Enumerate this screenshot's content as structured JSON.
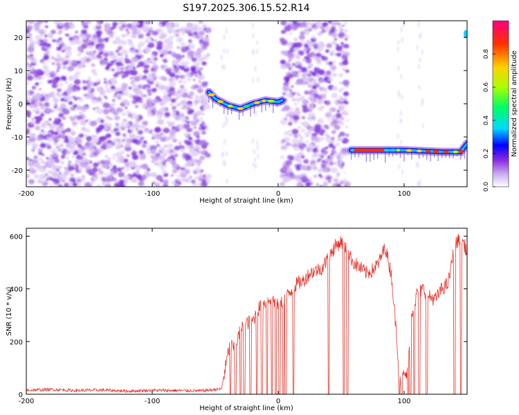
{
  "title": "S197.2025.306.15.52.R14",
  "chart_data": [
    {
      "type": "heatmap",
      "title": "S197.2025.306.15.52.R14",
      "xlabel": "Height of straight line (km)",
      "ylabel": "Frequency (Hz)",
      "xlim": [
        -200,
        150
      ],
      "ylim": [
        -25,
        25
      ],
      "x_ticks": [
        -200,
        -100,
        0,
        100
      ],
      "x_tick_labels": [
        "-200",
        "-100",
        "0",
        "100"
      ],
      "y_ticks": [
        -20,
        -10,
        0,
        10,
        20
      ],
      "y_tick_labels": [
        "-20",
        "-10",
        "0",
        "10",
        "20"
      ],
      "colorbar": {
        "label": "Normalized spectral amplitude",
        "range": [
          0,
          1
        ],
        "ticks": [
          0.0,
          0.2,
          0.4,
          0.6,
          0.8
        ],
        "tick_labels": [
          "0.0",
          "0.2",
          "0.4",
          "0.6",
          "0.8"
        ],
        "colors": [
          "#ffffff",
          "#c8a8f0",
          "#8a2be2",
          "#0000ff",
          "#00d8ff",
          "#00ff60",
          "#aaff00",
          "#ffd000",
          "#ff3000",
          "#ff0080"
        ]
      },
      "noise_regions_x": [
        [
          -200,
          -55
        ],
        [
          3,
          55
        ]
      ],
      "tone_segments": [
        {
          "x_start": -55,
          "x_end": 3,
          "frequency_profile": [
            [
              -55,
              3.5
            ],
            [
              -50,
              1.5
            ],
            [
              -40,
              -0.5
            ],
            [
              -30,
              -1.5
            ],
            [
              -20,
              0
            ],
            [
              -10,
              1.0
            ],
            [
              0,
              0.5
            ],
            [
              3,
              1.0
            ]
          ]
        },
        {
          "x_start": 58,
          "x_end": 150,
          "frequency_profile": [
            [
              58,
              -14
            ],
            [
              100,
              -14
            ],
            [
              130,
              -14.5
            ],
            [
              145,
              -14.5
            ],
            [
              150,
              -12
            ]
          ]
        }
      ]
    },
    {
      "type": "line",
      "xlabel": "Height of straight line (km)",
      "ylabel": "SNR (10 * v/v)",
      "xlim": [
        -200,
        150
      ],
      "ylim": [
        0,
        630
      ],
      "x_ticks": [
        -200,
        -100,
        0,
        100
      ],
      "x_tick_labels": [
        "-200",
        "-100",
        "0",
        "100"
      ],
      "y_ticks": [
        0,
        200,
        400,
        600
      ],
      "y_tick_labels": [
        "0",
        "200",
        "400",
        "600"
      ],
      "series": [
        {
          "name": "SNR",
          "color": "#e8322a",
          "x": [
            -200,
            -180,
            -160,
            -140,
            -120,
            -100,
            -80,
            -60,
            -45,
            -40,
            -38,
            -35,
            -30,
            -25,
            -20,
            -15,
            -10,
            -5,
            0,
            5,
            10,
            15,
            20,
            25,
            30,
            35,
            40,
            45,
            50,
            55,
            60,
            65,
            70,
            75,
            80,
            85,
            90,
            93,
            95,
            97,
            100,
            103,
            105,
            108,
            110,
            115,
            120,
            125,
            130,
            135,
            140,
            145,
            150
          ],
          "values": [
            15,
            18,
            14,
            16,
            12,
            15,
            14,
            13,
            20,
            150,
            190,
            170,
            240,
            270,
            280,
            330,
            350,
            370,
            330,
            360,
            390,
            420,
            430,
            460,
            470,
            480,
            520,
            560,
            580,
            540,
            500,
            480,
            460,
            470,
            500,
            560,
            450,
            280,
            160,
            60,
            70,
            80,
            300,
            330,
            380,
            400,
            370,
            360,
            400,
            420,
            560,
            600,
            540
          ],
          "dropouts_to_zero_x": [
            -38,
            -34,
            -30,
            -27,
            -22,
            -17,
            -13,
            -9,
            -5,
            -2,
            1,
            4,
            6,
            12,
            40,
            52,
            55,
            96,
            98,
            103,
            105,
            108,
            112,
            118,
            140,
            145
          ]
        }
      ]
    }
  ]
}
